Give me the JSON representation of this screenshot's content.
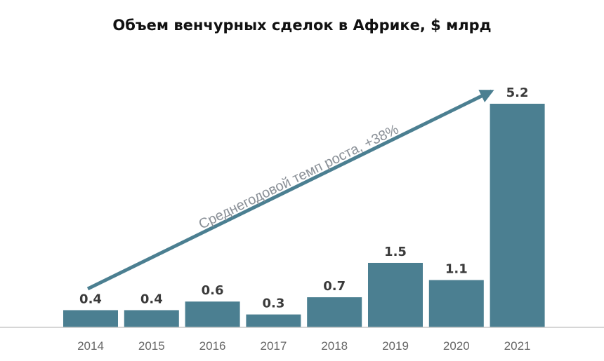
{
  "chart_data": {
    "type": "bar",
    "title": "Объем венчурных сделок в Африке, $ млрд",
    "categories": [
      "2014",
      "2015",
      "2016",
      "2017",
      "2018",
      "2019",
      "2020",
      "2021"
    ],
    "values": [
      0.4,
      0.4,
      0.6,
      0.3,
      0.7,
      1.5,
      1.1,
      5.2
    ],
    "value_labels": [
      "0.4",
      "0.4",
      "0.6",
      "0.3",
      "0.7",
      "1.5",
      "1.1",
      "5.2"
    ],
    "xlabel": "",
    "ylabel": "",
    "ylim": [
      0,
      5.2
    ],
    "grid": false,
    "annotation": "Среднегодовой темп роста, +38%",
    "colors": {
      "bar": "#4b7f91",
      "arrow": "#4b7f91",
      "axis": "#c8c8c8"
    }
  }
}
